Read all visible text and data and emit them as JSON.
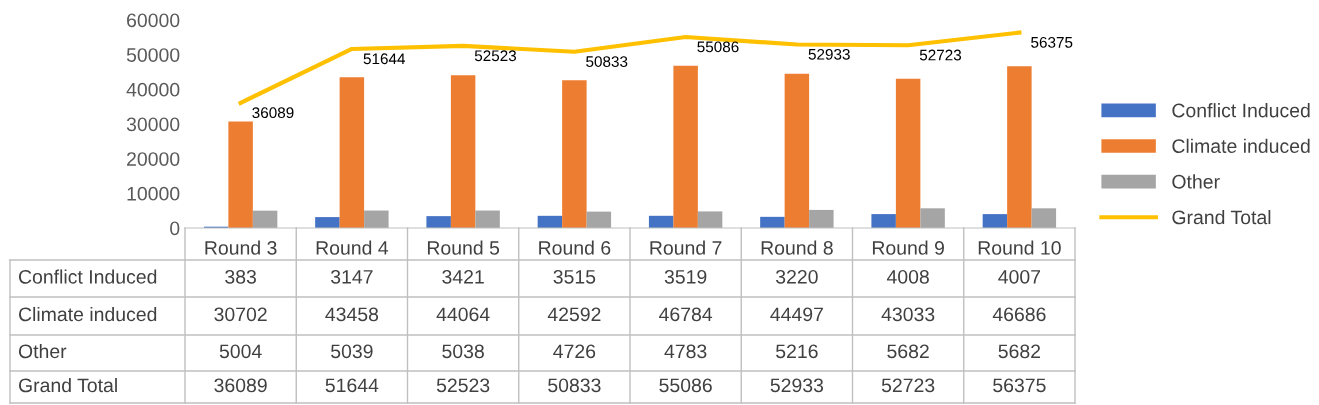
{
  "chart_data": {
    "type": "bar",
    "categories": [
      "Round 3",
      "Round 4",
      "Round 5",
      "Round 6",
      "Round 7",
      "Round 8",
      "Round 9",
      "Round 10"
    ],
    "series": [
      {
        "name": "Conflict Induced",
        "color": "#4472c4",
        "values": [
          383,
          3147,
          3421,
          3515,
          3519,
          3220,
          4008,
          4007
        ]
      },
      {
        "name": "Climate induced",
        "color": "#ed7d31",
        "values": [
          30702,
          43458,
          44064,
          42592,
          46784,
          44497,
          43033,
          46686
        ]
      },
      {
        "name": "Other",
        "color": "#a5a5a5",
        "values": [
          5004,
          5039,
          5038,
          4726,
          4783,
          5216,
          5682,
          5682
        ]
      },
      {
        "name": "Grand Total",
        "type": "line",
        "color": "#ffc000",
        "values": [
          36089,
          51644,
          52523,
          50833,
          55086,
          52933,
          52723,
          56375
        ]
      }
    ],
    "ylim": [
      0,
      60000
    ],
    "yticks": [
      0,
      10000,
      20000,
      30000,
      40000,
      50000,
      60000
    ],
    "annotations": [
      {
        "text": "36089",
        "x": "Round 3",
        "y": 36089
      },
      {
        "text": "51644",
        "x": "Round 4",
        "y": 51644
      },
      {
        "text": "52523",
        "x": "Round 5",
        "y": 52523
      },
      {
        "text": "50833",
        "x": "Round 6",
        "y": 50833
      },
      {
        "text": "55086",
        "x": "Round 7",
        "y": 55086
      },
      {
        "text": "52933",
        "x": "Round 8",
        "y": 52933
      },
      {
        "text": "52723",
        "x": "Round 9",
        "y": 52723
      },
      {
        "text": "56375",
        "x": "Round 10",
        "y": 56375
      }
    ],
    "grid": false,
    "legend": "right",
    "marker": "none",
    "line_style": "solid",
    "data_labels": true
  }
}
